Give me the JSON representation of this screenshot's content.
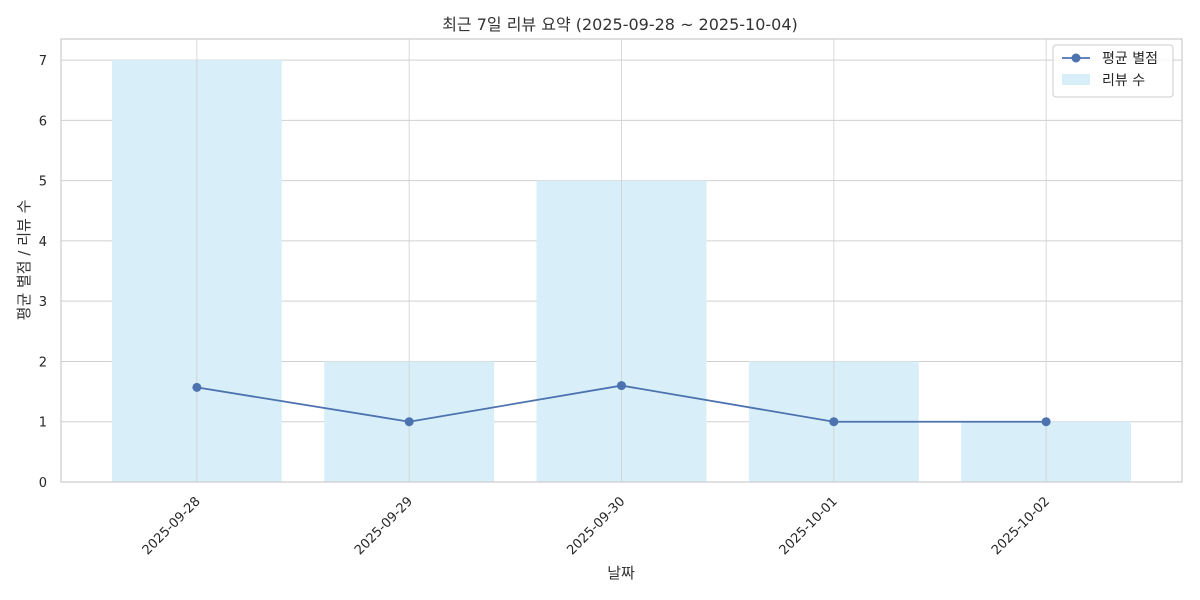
{
  "chart_data": {
    "type": "bar",
    "title": "최근 7일 리뷰 요약 (2025-09-28 ~ 2025-10-04)",
    "xlabel": "날짜",
    "ylabel": "평균 별점 / 리뷰 수",
    "categories": [
      "2025-09-28",
      "2025-09-29",
      "2025-09-30",
      "2025-10-01",
      "2025-10-02"
    ],
    "ylim": [
      0,
      7.35
    ],
    "yticks": [
      0,
      1,
      2,
      3,
      4,
      5,
      6,
      7
    ],
    "grid": true,
    "legend_position": "top-right",
    "series": [
      {
        "name": "리뷰 수",
        "type": "bar",
        "values": [
          7,
          2,
          5,
          2,
          1
        ],
        "color": "#d8eef8"
      },
      {
        "name": "평균 별점",
        "type": "line",
        "values": [
          1.57,
          1.0,
          1.6,
          1.0,
          1.0
        ],
        "color": "#4c72b0"
      }
    ]
  },
  "colors": {
    "grid": "#d0d0d0",
    "axes_border": "#cccccc"
  }
}
